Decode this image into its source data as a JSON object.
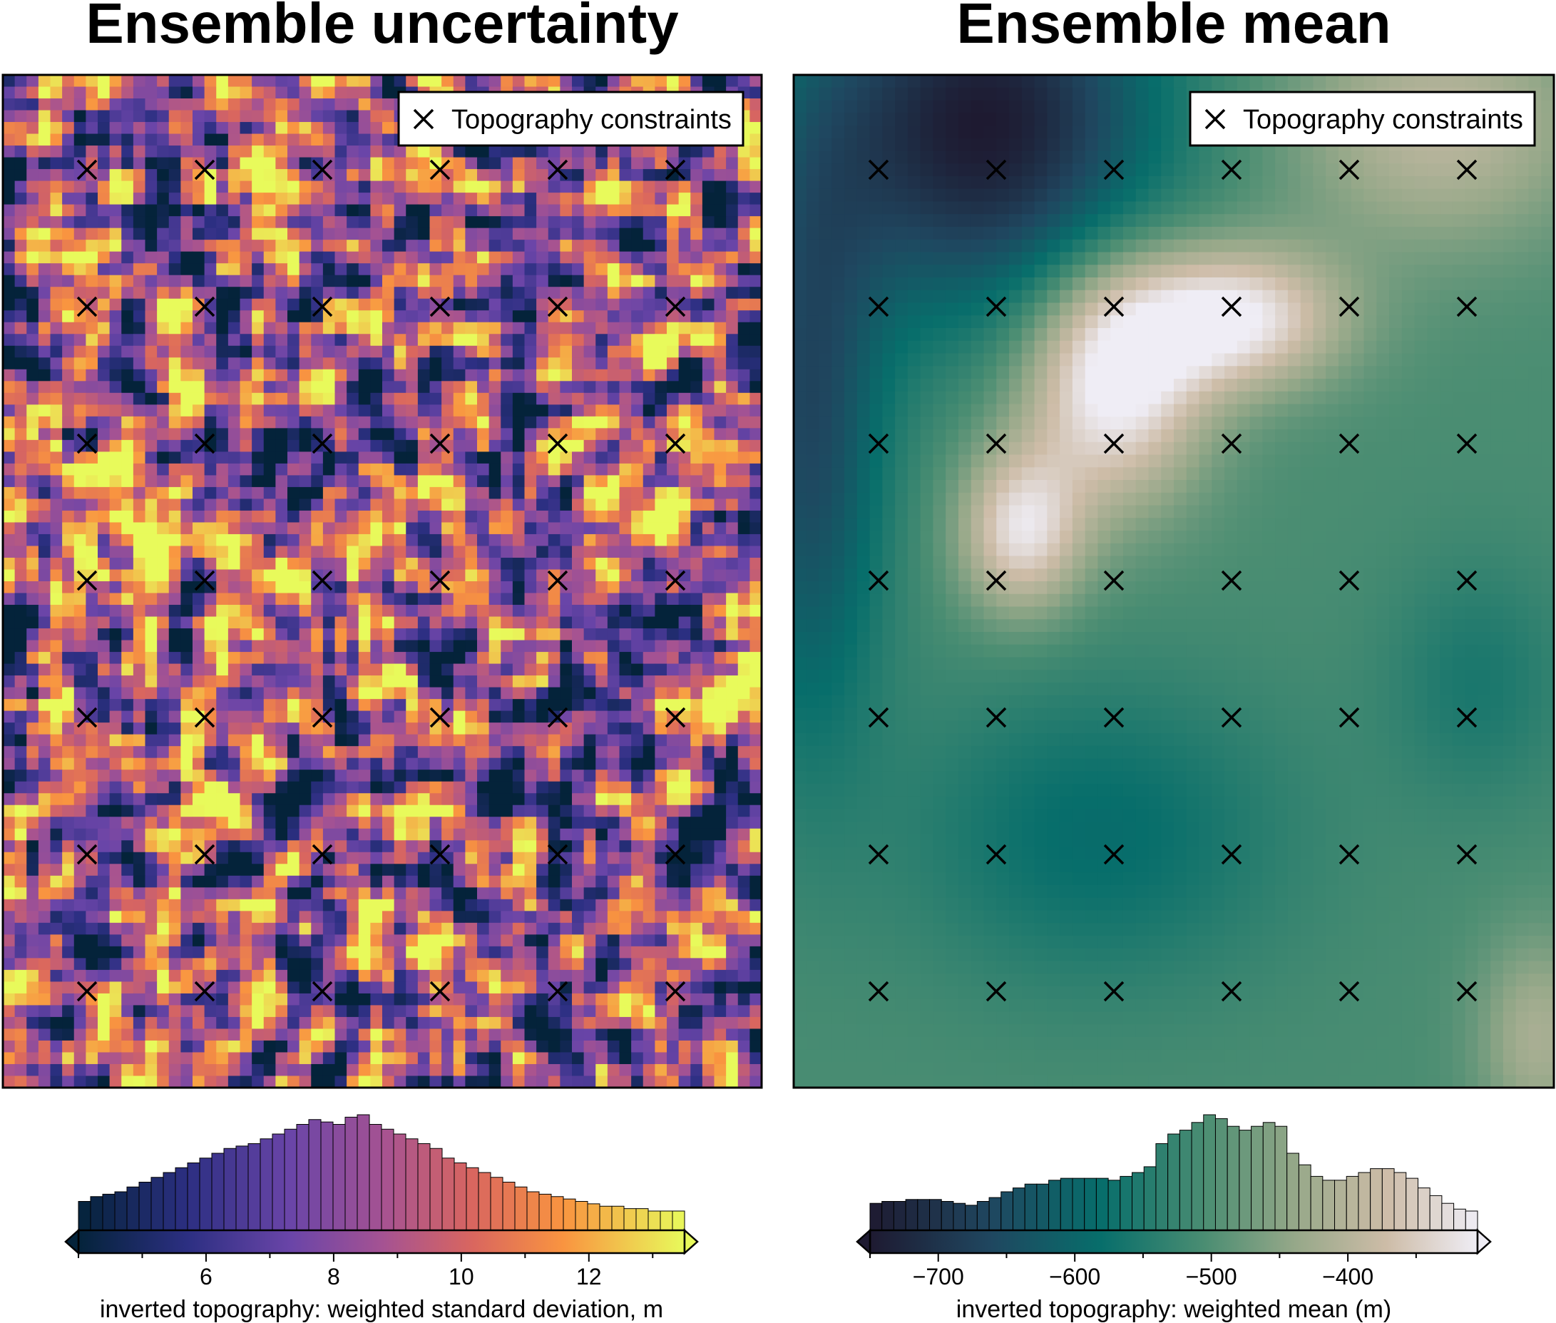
{
  "chart_data": [
    {
      "type": "heatmap",
      "title": "Ensemble uncertainty",
      "legend": {
        "label": "Topography constraints",
        "placement": "top-right",
        "marker": "x"
      },
      "constraint_grid": {
        "columns": 6,
        "rows": 7
      },
      "colorbar": {
        "label": "inverted topography: weighted standard deviation, m",
        "range": [
          4.0,
          13.5
        ],
        "ticks": [
          6,
          8,
          10,
          12
        ],
        "tick_labels": [
          "6",
          "8",
          "10",
          "12"
        ],
        "colormap": "thermal",
        "histogram_counts": [
          12,
          14,
          15,
          16,
          18,
          20,
          22,
          24,
          26,
          28,
          30,
          32,
          34,
          35,
          36,
          38,
          40,
          42,
          44,
          46,
          45,
          44,
          47,
          48,
          44,
          42,
          40,
          38,
          36,
          34,
          30,
          28,
          26,
          24,
          22,
          20,
          18,
          16,
          15,
          14,
          13,
          12,
          11,
          10,
          10,
          9,
          9,
          8,
          8,
          8
        ],
        "extend": "both"
      }
    },
    {
      "type": "heatmap",
      "title": "Ensemble mean",
      "legend": {
        "label": "Topography constraints",
        "placement": "top-right",
        "marker": "x"
      },
      "constraint_grid": {
        "columns": 6,
        "rows": 7
      },
      "colorbar": {
        "label": "inverted topography: weighted mean (m)",
        "range": [
          -750,
          -305
        ],
        "ticks": [
          -700,
          -600,
          -500,
          -400
        ],
        "tick_labels": [
          "−700",
          "−600",
          "−500",
          "−400"
        ],
        "colormap": "rain / earth-green",
        "histogram_counts": [
          14,
          15,
          15,
          16,
          16,
          16,
          15,
          14,
          13,
          15,
          17,
          20,
          22,
          24,
          24,
          26,
          27,
          27,
          27,
          27,
          26,
          28,
          30,
          33,
          45,
          50,
          52,
          56,
          60,
          58,
          54,
          52,
          54,
          56,
          54,
          40,
          34,
          28,
          26,
          26,
          28,
          30,
          32,
          32,
          30,
          27,
          22,
          18,
          14,
          11,
          10
        ],
        "extend": "both"
      }
    }
  ]
}
